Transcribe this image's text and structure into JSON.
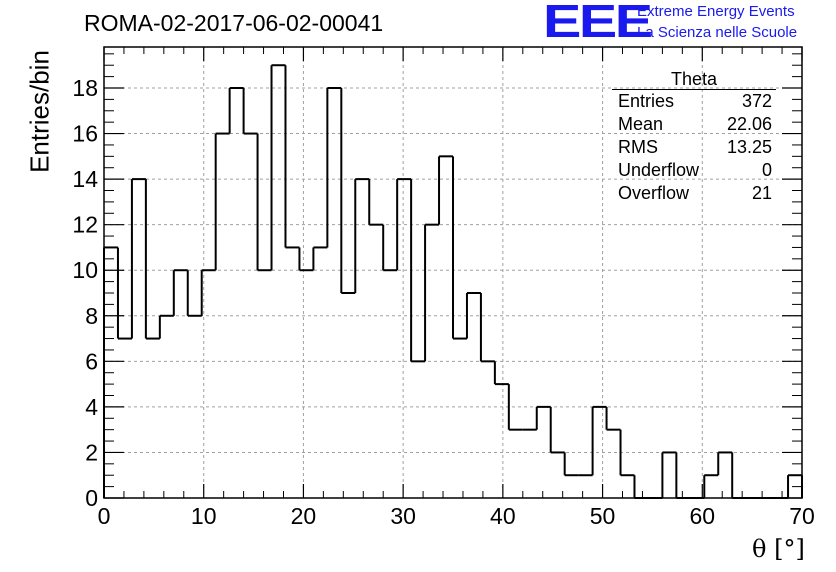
{
  "title": "ROMA-02-2017-06-02-00041",
  "logo": {
    "text": "EEE",
    "line1": "Extreme Energy Events",
    "line2": "La Scienza nelle Scuole"
  },
  "stats": {
    "name": "Theta",
    "rows": [
      {
        "label": "Entries",
        "value": "372"
      },
      {
        "label": "Mean",
        "value": "22.06"
      },
      {
        "label": "RMS",
        "value": "13.25"
      },
      {
        "label": "Underflow",
        "value": "0"
      },
      {
        "label": "Overflow",
        "value": "21"
      }
    ]
  },
  "chart_data": {
    "type": "bar",
    "title": "ROMA-02-2017-06-02-00041",
    "xlabel": "θ [°]",
    "ylabel": "Entries/bin",
    "xlim": [
      0,
      70
    ],
    "ylim": [
      0,
      19.8
    ],
    "bin_width": 1.4,
    "xticks": [
      "0",
      "10",
      "20",
      "30",
      "40",
      "50",
      "60",
      "70"
    ],
    "yticks": [
      "0",
      "2",
      "4",
      "6",
      "8",
      "10",
      "12",
      "14",
      "16",
      "18"
    ],
    "values": [
      11,
      7,
      14,
      7,
      8,
      10,
      8,
      10,
      16,
      18,
      16,
      10,
      19,
      11,
      10,
      11,
      18,
      9,
      14,
      12,
      10,
      14,
      6,
      12,
      15,
      7,
      9,
      6,
      5,
      3,
      3,
      4,
      2,
      1,
      1,
      4,
      3,
      1,
      0,
      0,
      2,
      0,
      0,
      1,
      2,
      0,
      0,
      0,
      0,
      1
    ],
    "grid": true,
    "legend": "none"
  }
}
